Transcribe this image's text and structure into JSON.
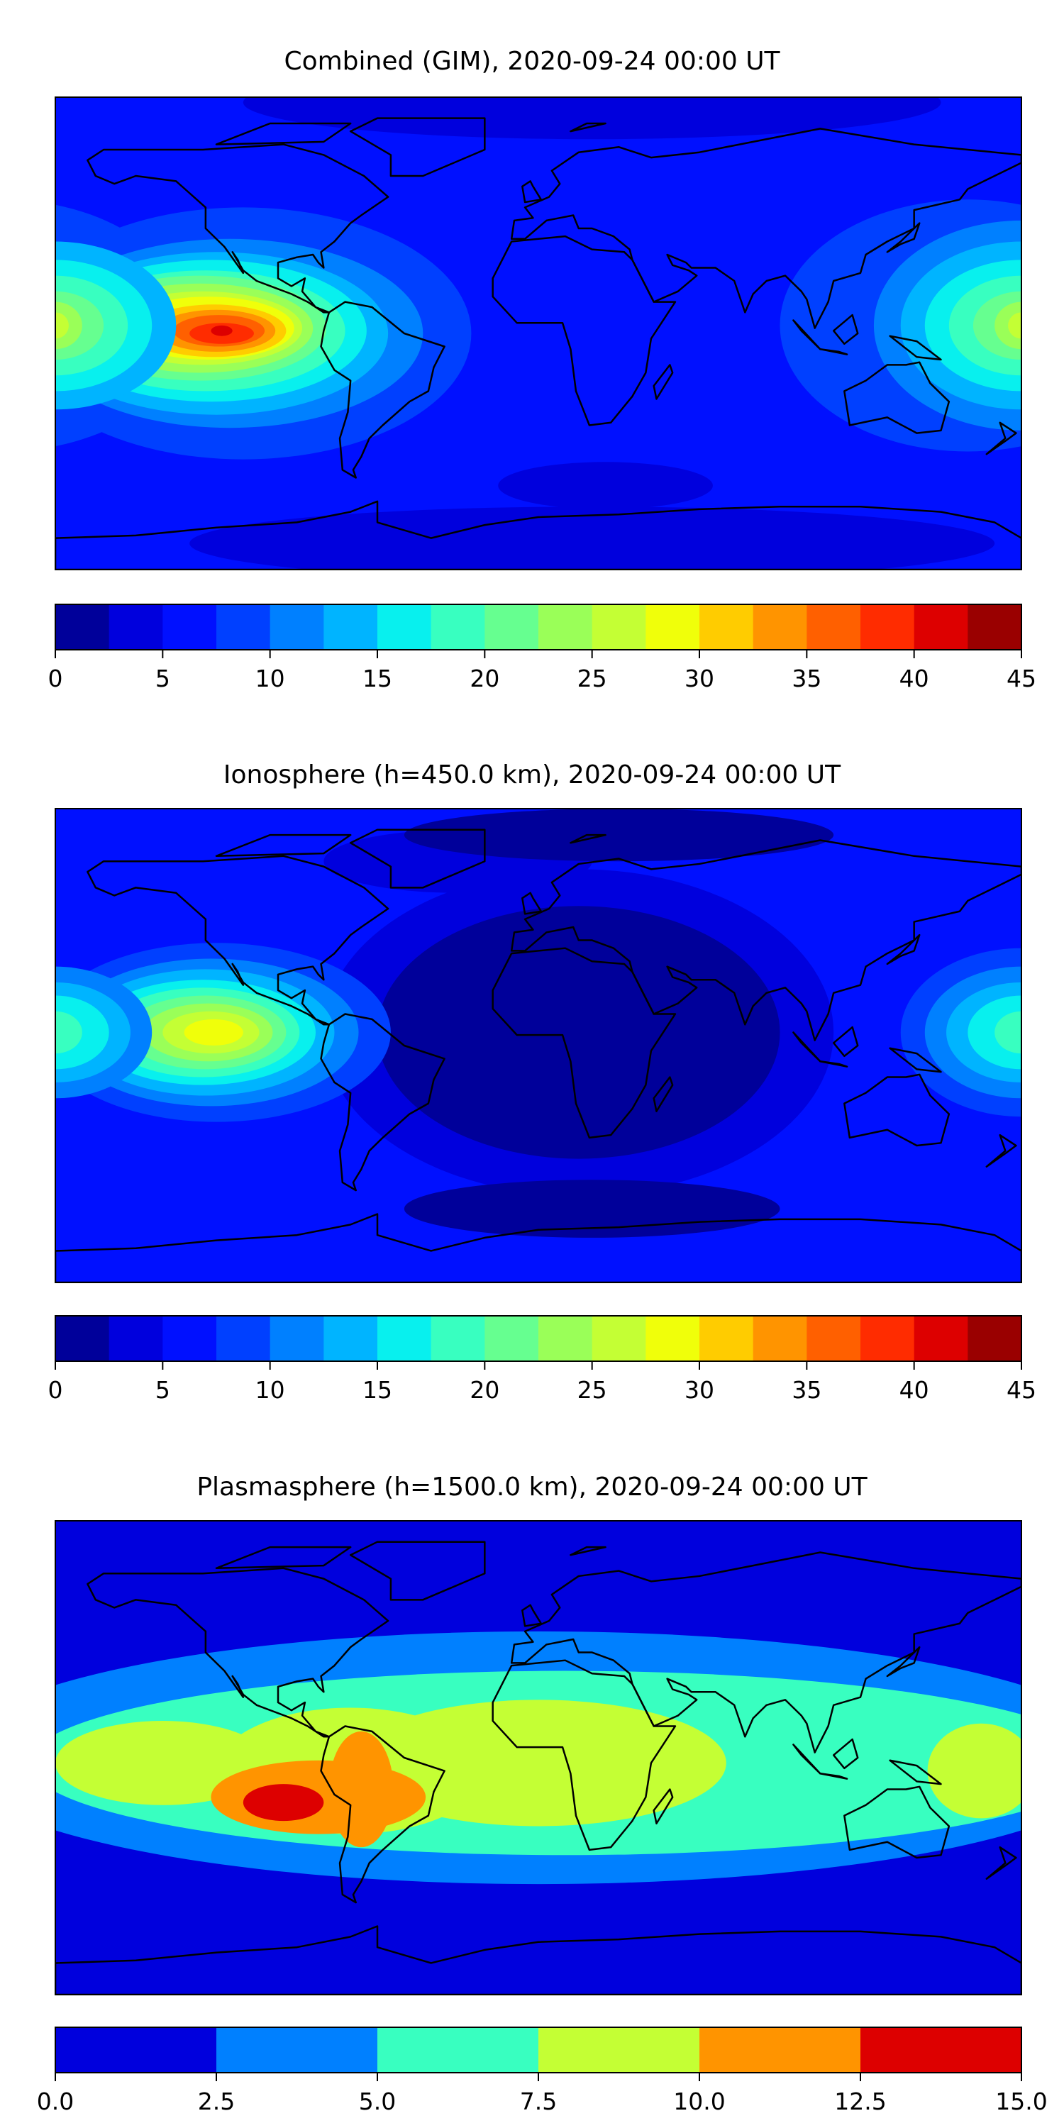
{
  "chart_data": [
    {
      "type": "heatmap",
      "title": "Combined (GIM), 2020-09-24 00:00 UT",
      "colorbar": {
        "range": [
          0,
          45
        ],
        "levels": [
          0,
          2.5,
          5,
          7.5,
          10,
          12.5,
          15,
          17.5,
          20,
          22.5,
          25,
          27.5,
          30,
          32.5,
          35,
          37.5,
          40,
          42.5,
          45
        ],
        "colors": [
          "#00009a",
          "#0000dd",
          "#0010ff",
          "#0040ff",
          "#0080ff",
          "#00b4ff",
          "#08f0ee",
          "#38ffc0",
          "#66ff90",
          "#9aff58",
          "#c4ff34",
          "#f0ff0a",
          "#ffcc00",
          "#ff9400",
          "#ff6000",
          "#ff2c00",
          "#dd0000",
          "#9a0000"
        ],
        "tick_values": [
          0,
          5,
          10,
          15,
          20,
          25,
          30,
          35,
          40,
          45
        ],
        "tick_labels": [
          "0",
          "5",
          "10",
          "15",
          "20",
          "25",
          "30",
          "35",
          "40",
          "45"
        ]
      },
      "peak_region": {
        "lon": -118,
        "lat": 0,
        "value_range": [
          42.5,
          45
        ]
      }
    },
    {
      "type": "heatmap",
      "title": "Ionosphere  (h=450.0 km), 2020-09-24 00:00 UT",
      "colorbar": {
        "range": [
          0,
          45
        ],
        "levels": [
          0,
          2.5,
          5,
          7.5,
          10,
          12.5,
          15,
          17.5,
          20,
          22.5,
          25,
          27.5,
          30,
          32.5,
          35,
          37.5,
          40,
          42.5,
          45
        ],
        "colors": [
          "#00009a",
          "#0000dd",
          "#0010ff",
          "#0040ff",
          "#0080ff",
          "#00b4ff",
          "#08f0ee",
          "#38ffc0",
          "#66ff90",
          "#9aff58",
          "#c4ff34",
          "#f0ff0a",
          "#ffcc00",
          "#ff9400",
          "#ff6000",
          "#ff2c00",
          "#dd0000",
          "#9a0000"
        ],
        "tick_values": [
          0,
          5,
          10,
          15,
          20,
          25,
          30,
          35,
          40,
          45
        ],
        "tick_labels": [
          "0",
          "5",
          "10",
          "15",
          "20",
          "25",
          "30",
          "35",
          "40",
          "45"
        ]
      },
      "peak_region": {
        "lon": -115,
        "lat": 5,
        "value_range": [
          27.5,
          30
        ]
      }
    },
    {
      "type": "heatmap",
      "title": "Plasmasphere (h=1500.0 km), 2020-09-24 00:00 UT",
      "colorbar": {
        "range": [
          0,
          15
        ],
        "levels": [
          0,
          2.5,
          5,
          7.5,
          10,
          12.5,
          15
        ],
        "colors": [
          "#0000dd",
          "#0080ff",
          "#38ffc0",
          "#c4ff34",
          "#ff9400",
          "#dd0000"
        ],
        "tick_values": [
          0,
          2.5,
          5,
          7.5,
          10,
          12.5,
          15
        ],
        "tick_labels": [
          "0.0",
          "2.5",
          "5.0",
          "7.5",
          "10.0",
          "12.5",
          "15.0"
        ]
      },
      "peak_region": {
        "lon": -95,
        "lat": -15,
        "value_range": [
          12.5,
          15
        ]
      }
    }
  ]
}
